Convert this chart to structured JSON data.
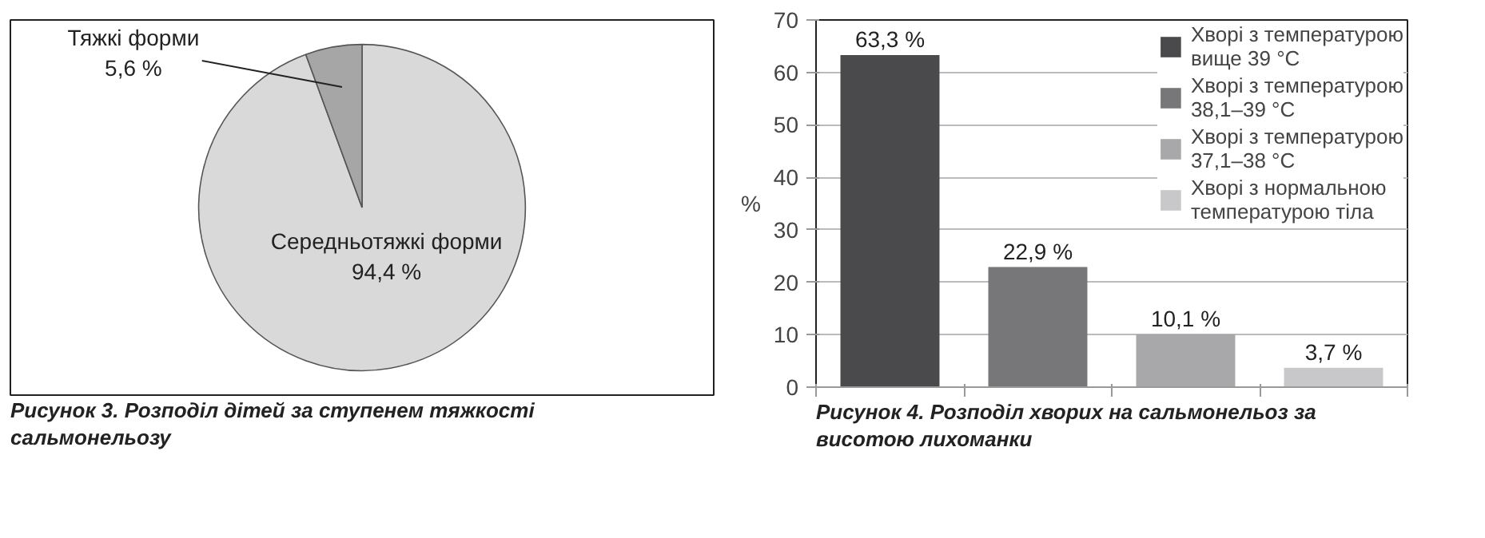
{
  "chart_data": [
    {
      "type": "pie",
      "title": "Рисунок 3.  Розподіл дітей за ступенем тяжкості сальмонельозу",
      "categories": [
        "Середньотяжкі форми",
        "Тяжкі форми"
      ],
      "values": [
        94.4,
        5.6
      ],
      "colors": [
        "#d9d9d9",
        "#a6a6a6"
      ],
      "value_labels": [
        "94,4 %",
        "5,6 %"
      ]
    },
    {
      "type": "bar",
      "title": "Рисунок 4.  Розподіл хворих на сальмонельоз за висотою лихоманки",
      "ylabel": "%",
      "categories": [
        null,
        null,
        null,
        null
      ],
      "series": [
        {
          "name": "Хворі з температурою вище 39 °C",
          "color": "#4a4a4c",
          "values": [
            63.3,
            null,
            null,
            null
          ],
          "value_labels": [
            "63,3 %",
            null,
            null,
            null
          ]
        },
        {
          "name": "Хворі з температурою 38,1–39 °C",
          "color": "#77777a",
          "values": [
            null,
            22.9,
            null,
            null
          ],
          "value_labels": [
            null,
            "22,9 %",
            null,
            null
          ]
        },
        {
          "name": "Хворі з температурою 37,1–38 °C",
          "color": "#a8a8aa",
          "values": [
            null,
            null,
            10.1,
            null
          ],
          "value_labels": [
            null,
            null,
            "10,1 %",
            null
          ]
        },
        {
          "name": "Хворі з нормальною температурою тіла",
          "color": "#c8c8ca",
          "values": [
            null,
            null,
            null,
            3.7
          ],
          "value_labels": [
            null,
            null,
            null,
            "3,7 %"
          ]
        }
      ],
      "ylim": [
        0,
        70
      ],
      "yticks": [
        0,
        10,
        20,
        30,
        40,
        50,
        60,
        70
      ],
      "grid": "y",
      "legend": "top right"
    }
  ]
}
